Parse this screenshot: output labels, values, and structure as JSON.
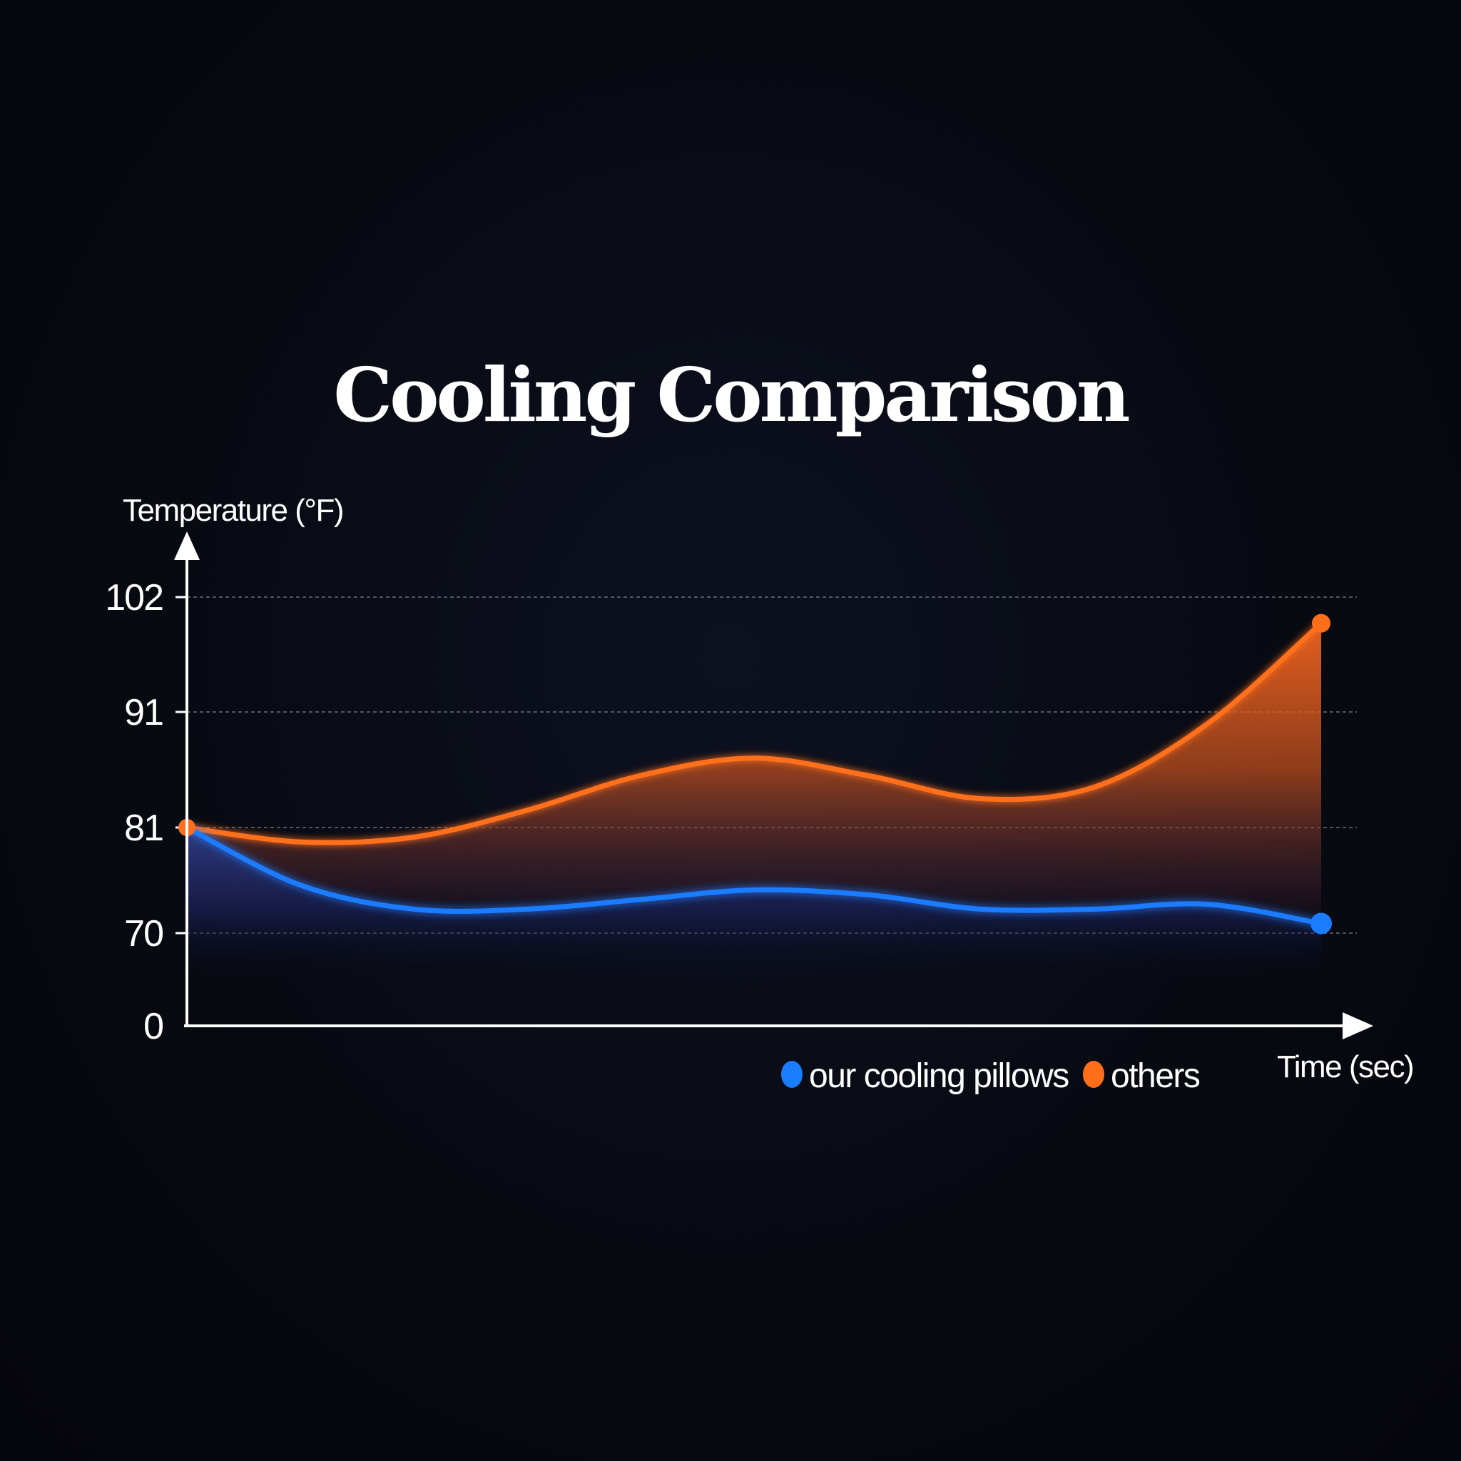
{
  "chart_data": {
    "type": "area",
    "title": "Cooling Comparison",
    "ylabel": "Temperature (°F)",
    "xlabel": "Time (sec)",
    "y_ticks": [
      0,
      70,
      81,
      91,
      102
    ],
    "ylim": [
      0,
      102
    ],
    "x": [
      0,
      1,
      2,
      3,
      4,
      5,
      6,
      7,
      8,
      9,
      10
    ],
    "grid": true,
    "legend_position": "bottom-right",
    "series": [
      {
        "name": "our cooling pillows",
        "color": "#1a7cff",
        "values": [
          81,
          75,
          72.5,
          72.5,
          73.5,
          74.5,
          74,
          72.5,
          72.5,
          73,
          71
        ]
      },
      {
        "name": "others",
        "color": "#ff6f1a",
        "values": [
          81,
          79.5,
          80,
          82.5,
          85.5,
          87,
          85.5,
          83.5,
          84.5,
          90,
          99.5
        ]
      }
    ]
  }
}
